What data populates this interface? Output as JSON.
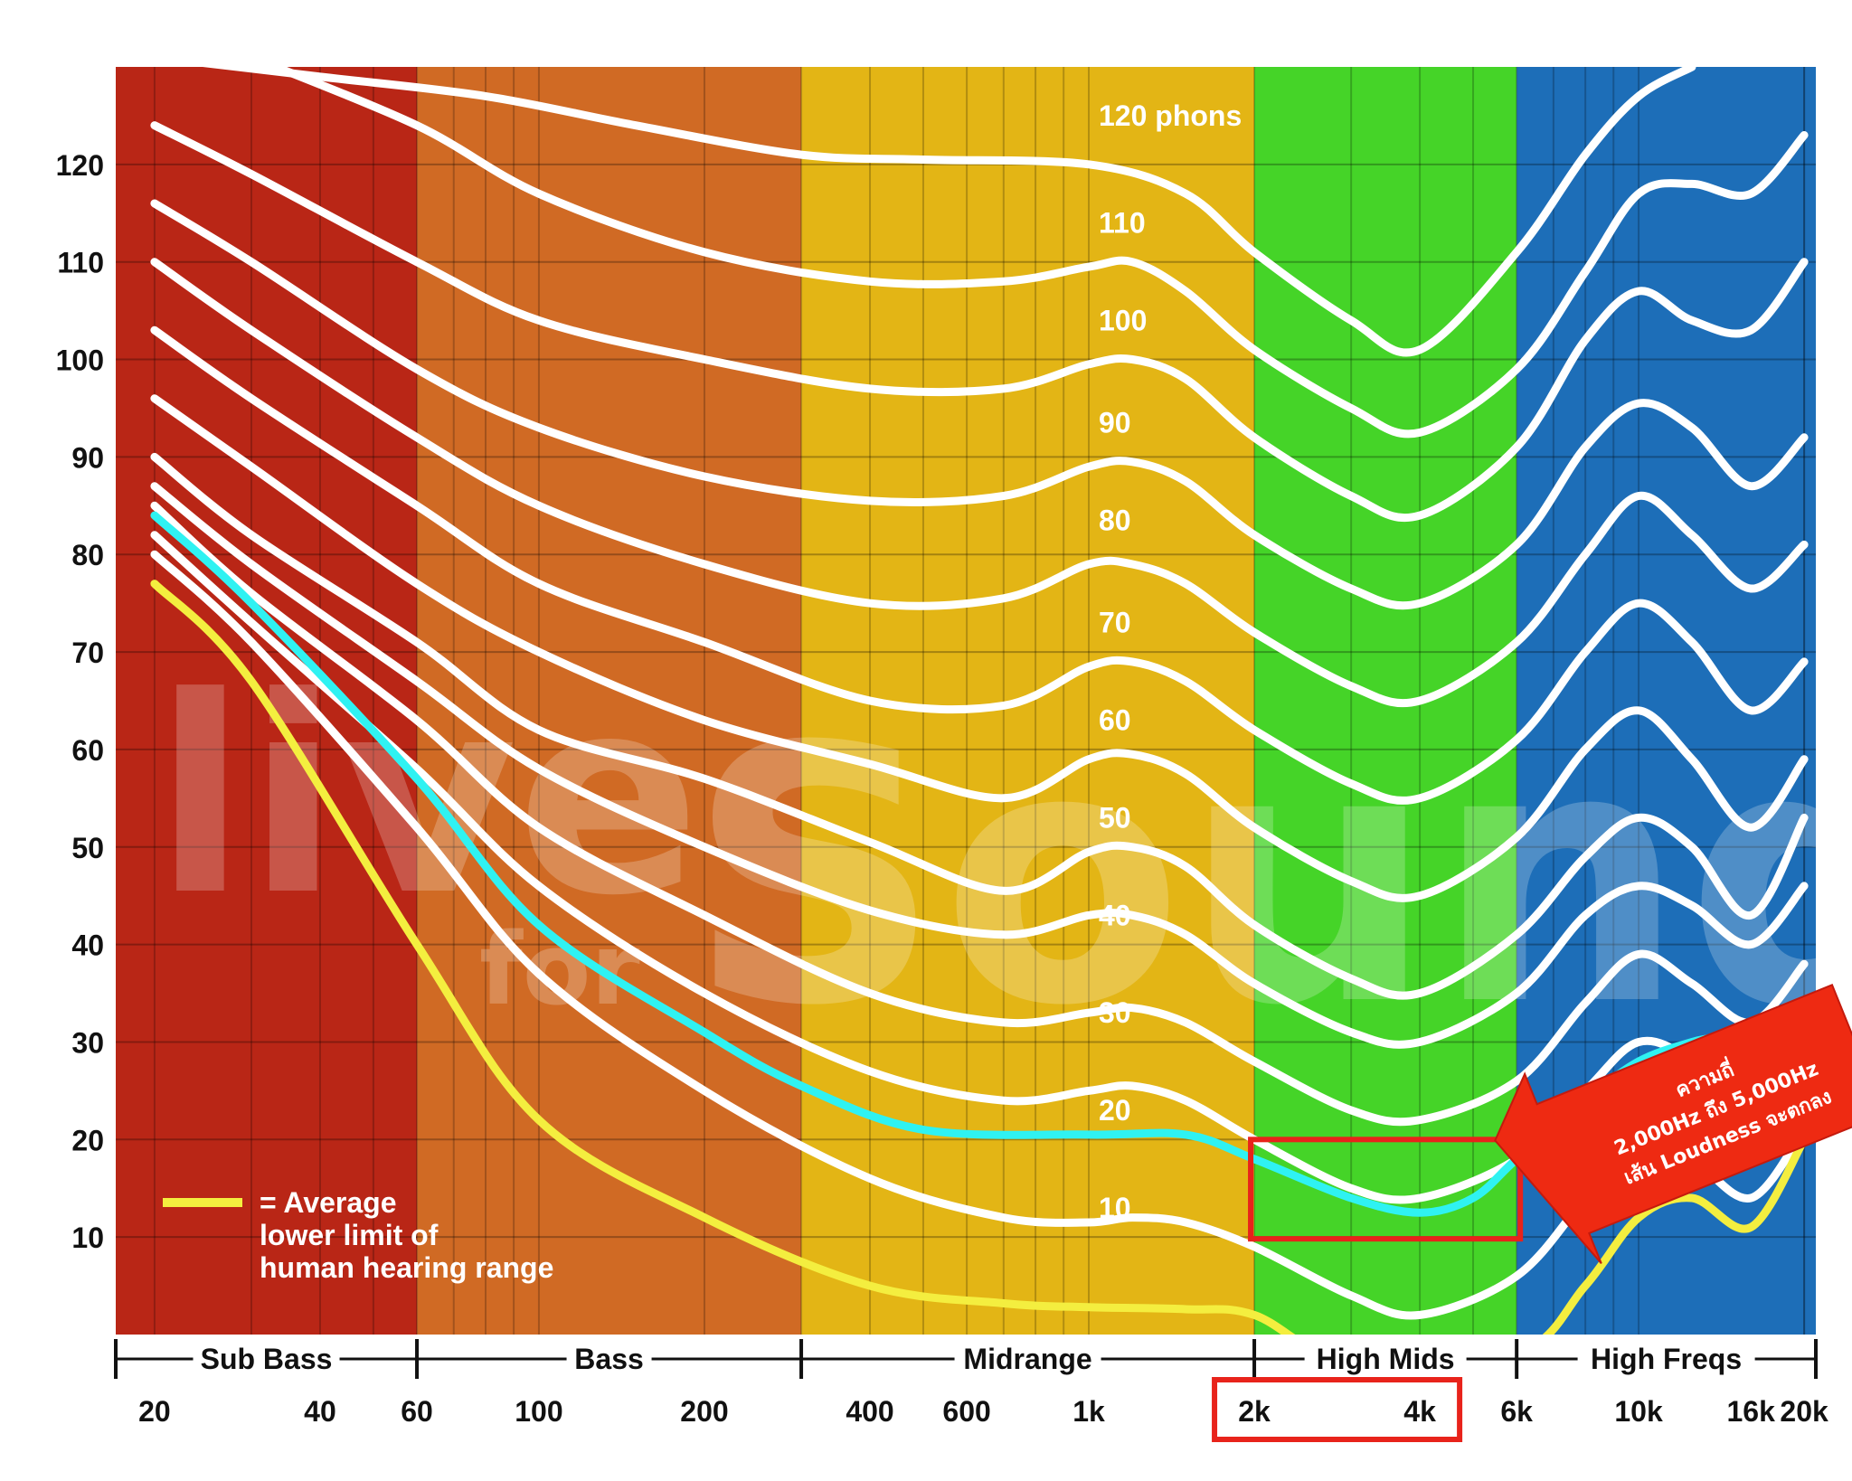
{
  "chart_data": {
    "type": "line",
    "title": "",
    "xlabel": "",
    "ylabel": "",
    "x_scale": "log",
    "xlim": [
      17,
      21000
    ],
    "ylim": [
      0,
      130
    ],
    "grid": true,
    "y_ticks": [
      "120",
      "110",
      "100",
      "90",
      "80",
      "70",
      "60",
      "50",
      "40",
      "30",
      "20",
      "10"
    ],
    "x_ticks": [
      {
        "label": "20",
        "value": 20
      },
      {
        "label": "40",
        "value": 40
      },
      {
        "label": "60",
        "value": 60
      },
      {
        "label": "100",
        "value": 100
      },
      {
        "label": "200",
        "value": 200
      },
      {
        "label": "400",
        "value": 400
      },
      {
        "label": "600",
        "value": 600
      },
      {
        "label": "1k",
        "value": 1000
      },
      {
        "label": "2k",
        "value": 2000
      },
      {
        "label": "4k",
        "value": 4000
      },
      {
        "label": "6k",
        "value": 6000
      },
      {
        "label": "10k",
        "value": 10000
      },
      {
        "label": "16k",
        "value": 16000
      },
      {
        "label": "20k",
        "value": 20000
      }
    ],
    "bands": [
      {
        "name": "Sub Bass",
        "from": 17,
        "to": 60,
        "color": "#b92616"
      },
      {
        "name": "Bass",
        "from": 60,
        "to": 300,
        "color": "#d06a24"
      },
      {
        "name": "Midrange",
        "from": 300,
        "to": 2000,
        "color": "#e3b515"
      },
      {
        "name": "High Mids",
        "from": 2000,
        "to": 6000,
        "color": "#45d428"
      },
      {
        "name": "High Freqs",
        "from": 6000,
        "to": 21000,
        "color": "#1d6eb8"
      }
    ],
    "series": [
      {
        "name": "120 phons",
        "label": "120 phons",
        "color": "#ffffff",
        "x": [
          20,
          40,
          80,
          150,
          300,
          500,
          1000,
          1500,
          2000,
          3000,
          4000,
          6000,
          8000,
          10000,
          12500
        ],
        "y": [
          131,
          129,
          127,
          124,
          121,
          120.5,
          120,
          117,
          111,
          104,
          101,
          111,
          121,
          127,
          130
        ]
      },
      {
        "name": "110",
        "label": "110",
        "color": "#ffffff",
        "x": [
          30,
          60,
          100,
          200,
          400,
          700,
          1000,
          1200,
          1500,
          2000,
          3000,
          4000,
          6000,
          8000,
          10000,
          12500,
          16000,
          20000
        ],
        "y": [
          131,
          124,
          117,
          111,
          108,
          108,
          109.5,
          110,
          107,
          101,
          95,
          92.5,
          99,
          109,
          117,
          118,
          117,
          123
        ]
      },
      {
        "name": "100",
        "label": "100",
        "color": "#ffffff",
        "x": [
          20,
          30,
          60,
          100,
          200,
          400,
          700,
          1000,
          1200,
          1500,
          2000,
          3000,
          4000,
          6000,
          8000,
          10000,
          12500,
          16000,
          20000
        ],
        "y": [
          124,
          119,
          110,
          104,
          100,
          97,
          97,
          99.5,
          100,
          98,
          92,
          86,
          84,
          91,
          102,
          107,
          104,
          103,
          110
        ]
      },
      {
        "name": "90",
        "label": "90",
        "color": "#ffffff",
        "x": [
          20,
          30,
          60,
          100,
          200,
          400,
          700,
          1000,
          1200,
          1500,
          2000,
          3000,
          4000,
          6000,
          8000,
          10000,
          12500,
          16000,
          20000
        ],
        "y": [
          116,
          110,
          99,
          93,
          88,
          85.5,
          86,
          89,
          89.5,
          87.5,
          82,
          76.5,
          75,
          81,
          91,
          95.5,
          93,
          87,
          92
        ]
      },
      {
        "name": "80",
        "label": "80",
        "color": "#ffffff",
        "x": [
          20,
          30,
          60,
          100,
          200,
          400,
          700,
          1000,
          1200,
          1500,
          2000,
          3000,
          4000,
          6000,
          8000,
          10000,
          12500,
          16000,
          20000
        ],
        "y": [
          110,
          103,
          92,
          85,
          79,
          75,
          75.5,
          79,
          79,
          77,
          72,
          66.5,
          65,
          71,
          80,
          86,
          82,
          76.5,
          81
        ]
      },
      {
        "name": "70",
        "label": "70",
        "color": "#ffffff",
        "x": [
          20,
          30,
          60,
          100,
          200,
          400,
          700,
          1000,
          1200,
          1500,
          2000,
          3000,
          4000,
          6000,
          8000,
          10000,
          12500,
          16000,
          20000
        ],
        "y": [
          103,
          96,
          85,
          77,
          71,
          65,
          64.5,
          68.5,
          69,
          67,
          62,
          56.5,
          55,
          61,
          70,
          75,
          71,
          64,
          69
        ]
      },
      {
        "name": "60",
        "label": "60",
        "color": "#ffffff",
        "x": [
          20,
          30,
          60,
          100,
          200,
          400,
          700,
          1000,
          1200,
          1500,
          2000,
          3000,
          4000,
          6000,
          8000,
          10000,
          12500,
          16000,
          20000
        ],
        "y": [
          96,
          89,
          77,
          70,
          63,
          58.5,
          55,
          59,
          59.5,
          57.5,
          52,
          46.5,
          45,
          51,
          60,
          64,
          59,
          52,
          59
        ]
      },
      {
        "name": "50",
        "label": "50",
        "color": "#ffffff",
        "x": [
          20,
          30,
          60,
          100,
          200,
          400,
          700,
          1000,
          1200,
          1500,
          2000,
          3000,
          4000,
          6000,
          8000,
          10000,
          12500,
          16000,
          20000
        ],
        "y": [
          90,
          82,
          71,
          62,
          57,
          50.5,
          45.5,
          49.5,
          50,
          48,
          42,
          36.5,
          35,
          41,
          49,
          53,
          50,
          43,
          53
        ]
      },
      {
        "name": "40",
        "label": "40",
        "color": "#ffffff",
        "x": [
          20,
          30,
          60,
          100,
          200,
          400,
          700,
          1000,
          1200,
          1500,
          2000,
          3000,
          4000,
          6000,
          8000,
          10000,
          12500,
          16000,
          20000
        ],
        "y": [
          87,
          79,
          67,
          58,
          50,
          43.5,
          41,
          43,
          43,
          41,
          36,
          31,
          30,
          35,
          43,
          46,
          44,
          40,
          46
        ]
      },
      {
        "name": "30",
        "label": "30",
        "color": "#ffffff",
        "x": [
          20,
          30,
          60,
          100,
          200,
          400,
          700,
          1000,
          1200,
          1500,
          2000,
          3000,
          4000,
          6000,
          8000,
          10000,
          12500,
          16000,
          20000
        ],
        "y": [
          85,
          76,
          63,
          52,
          43,
          35,
          32,
          33,
          33.5,
          32,
          28,
          23,
          22,
          26,
          34,
          39,
          36,
          32,
          38
        ]
      },
      {
        "name": "20",
        "label": "20",
        "color": "#ffffff",
        "x": [
          20,
          30,
          60,
          100,
          200,
          400,
          700,
          1000,
          1200,
          1500,
          2000,
          3000,
          4000,
          6000,
          8000,
          10000,
          12500,
          16000,
          20000
        ],
        "y": [
          82,
          73,
          58,
          46,
          35,
          27,
          24,
          25,
          25.5,
          24,
          20,
          15,
          14,
          18,
          25,
          30,
          28,
          22,
          28
        ]
      },
      {
        "name": "10",
        "label": "10",
        "color": "#ffffff",
        "x": [
          20,
          30,
          60,
          100,
          200,
          400,
          700,
          1000,
          1200,
          1500,
          2000,
          3000,
          4000,
          6000,
          8000,
          10000,
          12500,
          16000,
          20000
        ],
        "y": [
          80,
          71,
          52,
          37,
          25,
          16,
          12,
          11.5,
          12,
          11.5,
          9,
          4,
          2,
          6,
          14,
          20,
          18,
          14,
          21
        ]
      },
      {
        "name": "threshold-cyan",
        "label": "",
        "color": "#2ff2f2",
        "x": [
          20,
          30,
          60,
          100,
          200,
          300,
          500,
          1000,
          1500,
          2000,
          3000,
          4000,
          5000,
          6000,
          8000,
          10000,
          12500,
          14000
        ],
        "y": [
          84,
          75,
          57,
          42,
          31,
          25.5,
          21,
          20.5,
          20.5,
          18,
          14,
          12.5,
          14,
          18,
          24,
          28,
          30,
          30.5
        ]
      },
      {
        "name": "Average lower limit of human hearing range",
        "label": "",
        "color": "#f4ee3f",
        "x": [
          20,
          30,
          60,
          100,
          200,
          400,
          700,
          1000,
          1500,
          2000,
          3000,
          6000,
          8000,
          10000,
          12500,
          16000,
          20000
        ],
        "y": [
          77,
          67,
          40,
          22,
          12,
          5,
          3.2,
          2.8,
          2.6,
          2,
          -3,
          -2,
          5,
          12,
          14,
          11,
          20
        ]
      }
    ],
    "phon_labels": [
      {
        "text": "120 phons",
        "y": 125
      },
      {
        "text": "110",
        "y": 114
      },
      {
        "text": "100",
        "y": 104
      },
      {
        "text": "90",
        "y": 93.5
      },
      {
        "text": "80",
        "y": 83.5
      },
      {
        "text": "70",
        "y": 73
      },
      {
        "text": "60",
        "y": 63
      },
      {
        "text": "50",
        "y": 53
      },
      {
        "text": "40",
        "y": 43
      },
      {
        "text": "30",
        "y": 33
      },
      {
        "text": "20",
        "y": 23
      },
      {
        "text": "10",
        "y": 13
      }
    ],
    "highlight_box": {
      "from": 2000,
      "to": 6000,
      "y_top": 20,
      "y_bottom": 10,
      "color": "#e8231b"
    },
    "xtick_highlight": {
      "from": 2000,
      "to": 4000,
      "color": "#e8231b"
    },
    "legend": {
      "position": "bottom-left",
      "line_color": "#f4ee3f",
      "lines": [
        "= Average",
        "lower limit of",
        "human hearing range"
      ]
    },
    "callout": {
      "color": "#ee2a12",
      "lines": [
        "ความถี่",
        "2,000Hz ถึง 5,000Hz",
        "เส้น Loudness จะตกลง"
      ]
    },
    "watermark": {
      "lines": [
        "live",
        "for",
        "Sound"
      ]
    }
  }
}
